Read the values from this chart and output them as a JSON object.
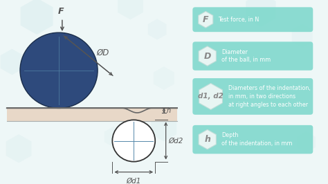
{
  "bg_color": "#eef7f7",
  "ball_color": "#2e4a7c",
  "ball_edge_color": "#1a2d4a",
  "surface_fill": "#e8d8c8",
  "surface_line_color": "#666666",
  "circle_fill": "#ffffff",
  "circle_edge": "#333333",
  "crosshair_color": "#5588aa",
  "arrow_color": "#555555",
  "dim_line_color": "#555555",
  "label_F": "F",
  "label_D": "ØD",
  "label_d1": "Ød1",
  "label_d2": "Ød2",
  "label_h": "h",
  "legend_F_symbol": "F",
  "legend_F_text": "Test force, in N",
  "legend_D_symbol": "D",
  "legend_D_text": "Diameter\nof the ball, in mm",
  "legend_d1d2_symbol": "d1, d2",
  "legend_d1d2_text": "Diameters of the indentation,\nin mm, in two directions\nat right angles to each other",
  "legend_h_symbol": "h",
  "legend_h_text": "Depth\nof the indentation, in mm",
  "pill_color": "#7dd8cc",
  "hex_fill": "#e8f5f3",
  "hex_edge": "#c0ddd8",
  "bg_hex_color": "#d4eaec",
  "legend_text_color": "#ffffff",
  "hex_symbol_color": "#888888"
}
